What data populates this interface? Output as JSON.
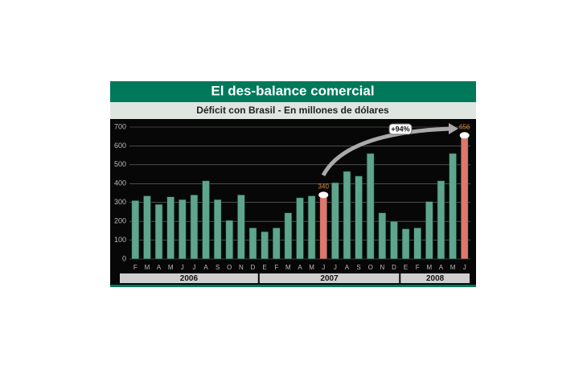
{
  "chart_data": {
    "type": "bar",
    "title": "El des-balance comercial",
    "subtitle": "Déficit con Brasil - En millones de dólares",
    "annotation": "+94%",
    "categories": [
      "F",
      "M",
      "A",
      "M",
      "J",
      "J",
      "A",
      "S",
      "O",
      "N",
      "D",
      "E",
      "F",
      "M",
      "A",
      "M",
      "J",
      "J",
      "A",
      "S",
      "O",
      "N",
      "D",
      "E",
      "F",
      "M",
      "A",
      "M",
      "J"
    ],
    "years": [
      "2006",
      "2007",
      "2008"
    ],
    "values": [
      310,
      335,
      290,
      330,
      315,
      340,
      415,
      315,
      205,
      340,
      165,
      145,
      165,
      245,
      325,
      335,
      340,
      405,
      465,
      440,
      560,
      245,
      200,
      160,
      165,
      305,
      415,
      560,
      656
    ],
    "value_labels": [
      null,
      null,
      null,
      null,
      null,
      null,
      null,
      null,
      null,
      null,
      null,
      null,
      null,
      null,
      null,
      null,
      "340",
      null,
      null,
      null,
      null,
      null,
      null,
      null,
      null,
      null,
      null,
      null,
      "656"
    ],
    "colors": [
      "#5fa58d",
      "#5fa58d",
      "#5fa58d",
      "#5fa58d",
      "#5fa58d",
      "#5fa58d",
      "#5fa58d",
      "#5fa58d",
      "#5fa58d",
      "#5fa58d",
      "#5fa58d",
      "#5fa58d",
      "#5fa58d",
      "#5fa58d",
      "#5fa58d",
      "#5fa58d",
      "#e0766c",
      "#5fa58d",
      "#5fa58d",
      "#5fa58d",
      "#5fa58d",
      "#5fa58d",
      "#5fa58d",
      "#5fa58d",
      "#5fa58d",
      "#5fa58d",
      "#5fa58d",
      "#5fa58d",
      "#e0766c"
    ],
    "ylim": [
      0,
      700
    ],
    "yticks": [
      0,
      100,
      200,
      300,
      400,
      500,
      600,
      700
    ],
    "grid": true
  }
}
